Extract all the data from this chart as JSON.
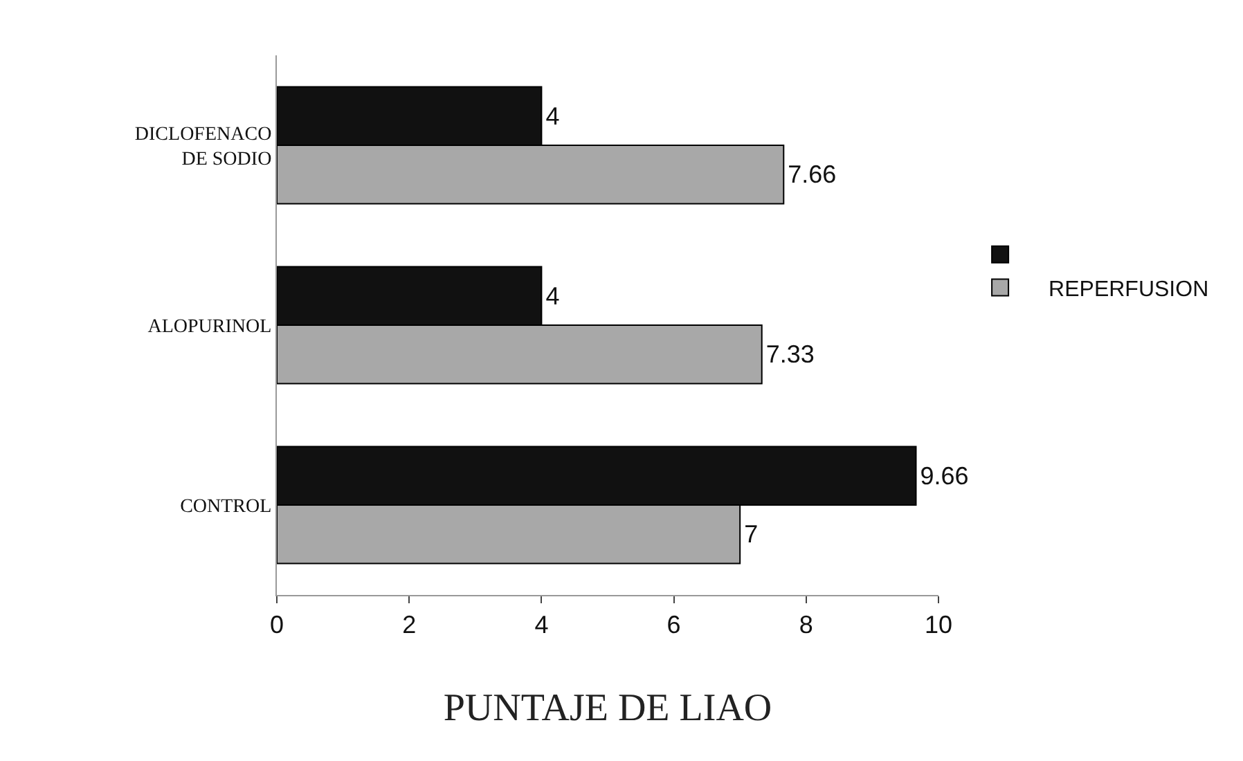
{
  "chart_data": {
    "type": "bar",
    "orientation": "horizontal",
    "xlabel": "PUNTAJE DE LIAO",
    "categories": [
      "DICLOFENACO DE SODIO",
      "ALOPURINOL",
      "CONTROL"
    ],
    "series": [
      {
        "color": "#111111",
        "values": [
          4,
          4,
          9.66
        ]
      },
      {
        "name": "REPERFUSION",
        "color": "#a8a8a8",
        "values": [
          7.66,
          7.33,
          7
        ]
      }
    ],
    "xlim": [
      0,
      10
    ],
    "xticks": [
      0,
      2,
      4,
      6,
      8,
      10
    ],
    "grid": false,
    "legend": "right",
    "data_labels": true
  }
}
